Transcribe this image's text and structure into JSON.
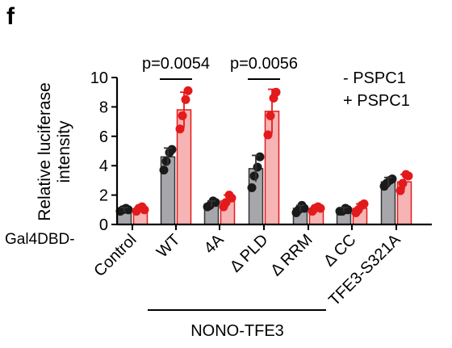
{
  "panel_letter": "f",
  "chart_data": {
    "type": "bar",
    "ylabel_line1": "Relative luciferase",
    "ylabel_line2": "intensity",
    "ylim": [
      0,
      10
    ],
    "yticks": [
      "0",
      "2",
      "4",
      "6",
      "8",
      "10"
    ],
    "x_prefix": "Gal4DBD-",
    "categories": [
      "Control",
      "WT",
      "4A",
      "Δ PLD",
      "Δ RRM",
      "Δ CC",
      "TFE3-S321A"
    ],
    "group_label": "NONO-TFE3",
    "series": [
      {
        "name": "- PSPC1",
        "color": "#000000",
        "bar_fill": "#a6a6ab",
        "values": [
          1.0,
          4.6,
          1.4,
          3.8,
          1.1,
          1.0,
          2.9
        ],
        "errors": [
          0.15,
          0.6,
          0.2,
          0.9,
          0.2,
          0.15,
          0.3
        ],
        "points": [
          [
            0.9,
            1.0,
            1.1,
            1.0
          ],
          [
            3.7,
            4.3,
            4.9,
            5.1
          ],
          [
            1.2,
            1.3,
            1.6,
            1.5
          ],
          [
            2.5,
            3.3,
            3.9,
            4.6
          ],
          [
            0.8,
            1.0,
            1.3,
            1.1
          ],
          [
            0.9,
            0.9,
            1.1,
            1.0
          ],
          [
            2.6,
            2.8,
            3.0,
            3.1
          ]
        ]
      },
      {
        "name": "+ PSPC1",
        "color": "#e31a1c",
        "bar_fill": "#f6b4b4",
        "values": [
          1.05,
          7.8,
          1.6,
          7.7,
          1.1,
          1.1,
          2.9
        ],
        "errors": [
          0.2,
          1.2,
          0.4,
          1.5,
          0.2,
          0.3,
          0.5
        ],
        "points": [
          [
            0.9,
            1.1,
            1.2,
            1.0
          ],
          [
            6.5,
            7.4,
            8.5,
            9.1
          ],
          [
            1.2,
            1.5,
            2.0,
            1.8
          ],
          [
            6.1,
            7.4,
            8.6,
            9.0
          ],
          [
            0.9,
            1.1,
            1.2,
            1.1
          ],
          [
            0.8,
            1.0,
            1.3,
            1.4
          ],
          [
            2.3,
            2.8,
            3.4,
            3.3
          ]
        ]
      }
    ],
    "annotations": [
      {
        "text": "p=0.0054",
        "category_index": 1
      },
      {
        "text": "p=0.0056",
        "category_index": 3
      }
    ]
  }
}
